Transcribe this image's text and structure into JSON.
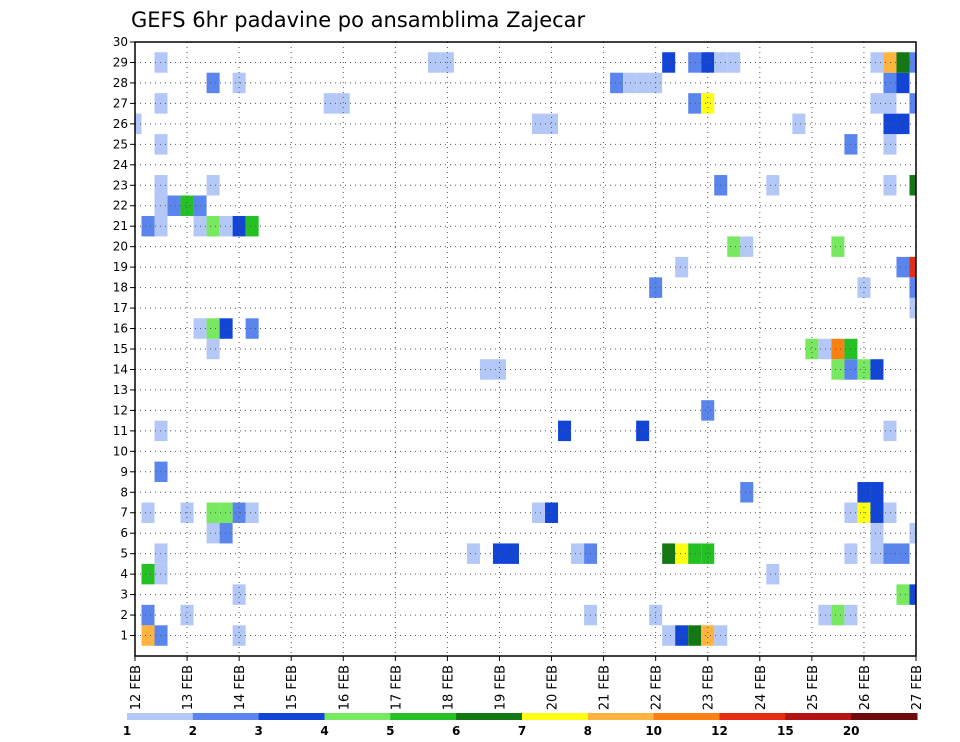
{
  "chart_data": {
    "type": "heatmap",
    "title": "GEFS 6hr padavine po ansamblima Zajecar",
    "xlabel": "",
    "ylabel": "",
    "x_range": [
      0,
      15
    ],
    "x_ticks": [
      "12 FEB",
      "13 FEB",
      "14 FEB",
      "15 FEB",
      "16 FEB",
      "17 FEB",
      "18 FEB",
      "19 FEB",
      "20 FEB",
      "21 FEB",
      "22 FEB",
      "23 FEB",
      "24 FEB",
      "25 FEB",
      "26 FEB",
      "27 FEB"
    ],
    "y_range": [
      0,
      30
    ],
    "y_ticks": [
      1,
      2,
      3,
      4,
      5,
      6,
      7,
      8,
      9,
      10,
      11,
      12,
      13,
      14,
      15,
      16,
      17,
      18,
      19,
      20,
      21,
      22,
      23,
      24,
      25,
      26,
      27,
      28,
      29,
      30
    ],
    "grid": true,
    "time_step_days": 0.25,
    "colorbar": {
      "levels": [
        "1",
        "2",
        "3",
        "4",
        "5",
        "6",
        "7",
        "8",
        "10",
        "12",
        "15",
        "20"
      ],
      "colors": [
        "#b4c8f8",
        "#5a85ec",
        "#1245d6",
        "#78e860",
        "#24c024",
        "#137813",
        "#ffff14",
        "#ffb440",
        "#fa8014",
        "#e62d14",
        "#b41414",
        "#6e0a0a"
      ]
    },
    "cells": [
      [
        0.25,
        1,
        8
      ],
      [
        0.5,
        1,
        2
      ],
      [
        2,
        1,
        1
      ],
      [
        10.25,
        1,
        1
      ],
      [
        10.5,
        1,
        3
      ],
      [
        10.75,
        1,
        6
      ],
      [
        11,
        1,
        8
      ],
      [
        11.25,
        1,
        1
      ],
      [
        0.25,
        2,
        2
      ],
      [
        1,
        2,
        1
      ],
      [
        8.75,
        2,
        1
      ],
      [
        10,
        2,
        1
      ],
      [
        13.25,
        2,
        1
      ],
      [
        13.5,
        2,
        4
      ],
      [
        13.75,
        2,
        1
      ],
      [
        2,
        3,
        1
      ],
      [
        14.75,
        3,
        4
      ],
      [
        15,
        3,
        3
      ],
      [
        0.25,
        4,
        5
      ],
      [
        0.5,
        4,
        1
      ],
      [
        12.25,
        4,
        1
      ],
      [
        0.5,
        5,
        1
      ],
      [
        6.5,
        5,
        1
      ],
      [
        7,
        5,
        3
      ],
      [
        7.25,
        5,
        3
      ],
      [
        8.5,
        5,
        1
      ],
      [
        8.75,
        5,
        2
      ],
      [
        10.25,
        5,
        6
      ],
      [
        10.5,
        5,
        7
      ],
      [
        10.75,
        5,
        5
      ],
      [
        11,
        5,
        5
      ],
      [
        13.75,
        5,
        1
      ],
      [
        14.25,
        5,
        1
      ],
      [
        14.5,
        5,
        2
      ],
      [
        14.75,
        5,
        2
      ],
      [
        1.5,
        6,
        1
      ],
      [
        1.75,
        6,
        2
      ],
      [
        14.25,
        6,
        1
      ],
      [
        15,
        6,
        1
      ],
      [
        0.25,
        7,
        1
      ],
      [
        1,
        7,
        1
      ],
      [
        1.5,
        7,
        4
      ],
      [
        1.75,
        7,
        4
      ],
      [
        2,
        7,
        2
      ],
      [
        2.25,
        7,
        1
      ],
      [
        7.75,
        7,
        1
      ],
      [
        8,
        7,
        3
      ],
      [
        13.75,
        7,
        1
      ],
      [
        14,
        7,
        7
      ],
      [
        14.25,
        7,
        3
      ],
      [
        14.5,
        7,
        1
      ],
      [
        11.75,
        8,
        2
      ],
      [
        14,
        8,
        3
      ],
      [
        14.25,
        8,
        3
      ],
      [
        0.5,
        9,
        2
      ],
      [
        0.5,
        11,
        1
      ],
      [
        8.25,
        11,
        3
      ],
      [
        9.75,
        11,
        3
      ],
      [
        14.5,
        11,
        1
      ],
      [
        11,
        12,
        2
      ],
      [
        6.75,
        14,
        1
      ],
      [
        7,
        14,
        1
      ],
      [
        13.5,
        14,
        4
      ],
      [
        13.75,
        14,
        2
      ],
      [
        14,
        14,
        4
      ],
      [
        14.25,
        14,
        3
      ],
      [
        1.5,
        15,
        1
      ],
      [
        13,
        15,
        4
      ],
      [
        13.25,
        15,
        1
      ],
      [
        13.5,
        15,
        9
      ],
      [
        13.75,
        15,
        5
      ],
      [
        1.25,
        16,
        1
      ],
      [
        1.5,
        16,
        4
      ],
      [
        1.75,
        16,
        3
      ],
      [
        2.25,
        16,
        2
      ],
      [
        15,
        17,
        1
      ],
      [
        10,
        18,
        2
      ],
      [
        14,
        18,
        1
      ],
      [
        15,
        18,
        2
      ],
      [
        10.5,
        19,
        1
      ],
      [
        14.75,
        19,
        2
      ],
      [
        15,
        19,
        10
      ],
      [
        11.5,
        20,
        4
      ],
      [
        11.75,
        20,
        1
      ],
      [
        13.5,
        20,
        4
      ],
      [
        0.25,
        21,
        2
      ],
      [
        0.5,
        21,
        1
      ],
      [
        1.25,
        21,
        1
      ],
      [
        1.5,
        21,
        4
      ],
      [
        1.75,
        21,
        1
      ],
      [
        2,
        21,
        3
      ],
      [
        2.25,
        21,
        5
      ],
      [
        0.5,
        22,
        1
      ],
      [
        0.75,
        22,
        2
      ],
      [
        1,
        22,
        5
      ],
      [
        1.25,
        22,
        2
      ],
      [
        0.5,
        23,
        1
      ],
      [
        1.5,
        23,
        1
      ],
      [
        11.25,
        23,
        2
      ],
      [
        12.25,
        23,
        1
      ],
      [
        14.5,
        23,
        1
      ],
      [
        15,
        23,
        6
      ],
      [
        0.5,
        25,
        1
      ],
      [
        13.75,
        25,
        2
      ],
      [
        14.5,
        25,
        1
      ],
      [
        0,
        26,
        1
      ],
      [
        7.75,
        26,
        1
      ],
      [
        8,
        26,
        1
      ],
      [
        12.75,
        26,
        1
      ],
      [
        14.5,
        26,
        3
      ],
      [
        14.75,
        26,
        3
      ],
      [
        0.5,
        27,
        1
      ],
      [
        3.75,
        27,
        1
      ],
      [
        4,
        27,
        1
      ],
      [
        10.75,
        27,
        2
      ],
      [
        11,
        27,
        7
      ],
      [
        14.25,
        27,
        1
      ],
      [
        14.5,
        27,
        1
      ],
      [
        15,
        27,
        2
      ],
      [
        1.5,
        28,
        2
      ],
      [
        2,
        28,
        1
      ],
      [
        9.25,
        28,
        2
      ],
      [
        9.5,
        28,
        1
      ],
      [
        9.75,
        28,
        1
      ],
      [
        10,
        28,
        1
      ],
      [
        14.5,
        28,
        2
      ],
      [
        14.75,
        28,
        3
      ],
      [
        0.5,
        29,
        1
      ],
      [
        5.75,
        29,
        1
      ],
      [
        6,
        29,
        1
      ],
      [
        10.25,
        29,
        3
      ],
      [
        10.75,
        29,
        2
      ],
      [
        11,
        29,
        3
      ],
      [
        11.25,
        29,
        1
      ],
      [
        11.5,
        29,
        1
      ],
      [
        14.25,
        29,
        1
      ],
      [
        14.5,
        29,
        8
      ],
      [
        14.75,
        29,
        6
      ],
      [
        15,
        29,
        2
      ]
    ]
  }
}
